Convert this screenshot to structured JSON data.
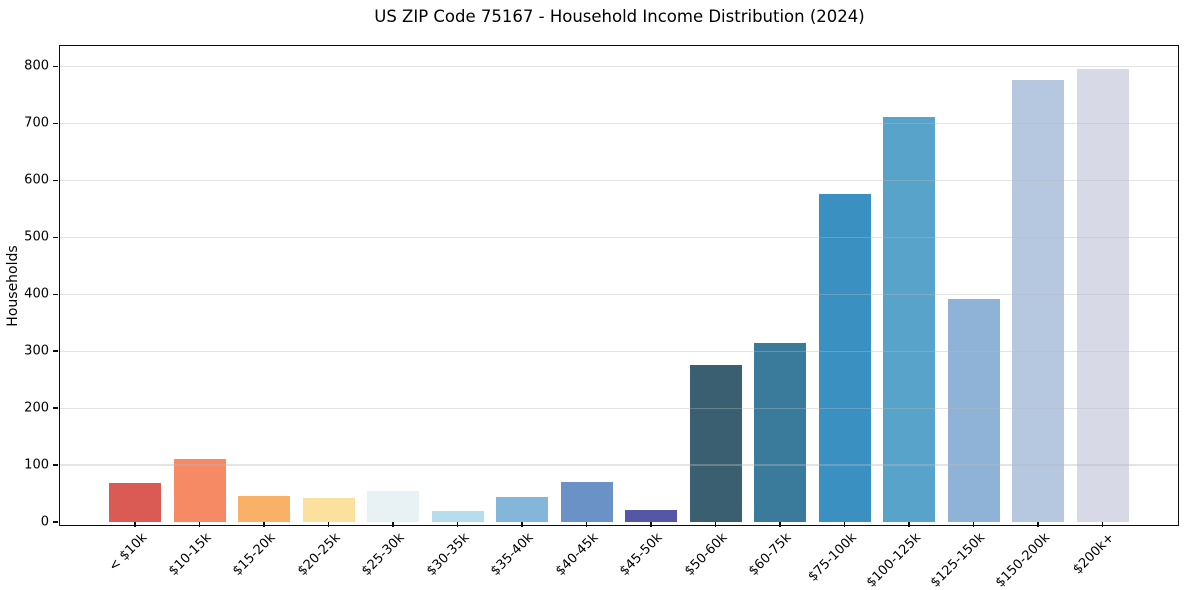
{
  "figure": {
    "title": "US ZIP Code 75167 - Household Income Distribution (2024)",
    "y_axis_label": "Households"
  },
  "chart_data": {
    "type": "bar",
    "title": "US ZIP Code 75167 - Household Income Distribution (2024)",
    "xlabel": "",
    "ylabel": "Households",
    "categories": [
      "< $10k",
      "$10-15k",
      "$15-20k",
      "$20-25k",
      "$25-30k",
      "$30-35k",
      "$35-40k",
      "$40-45k",
      "$45-50k",
      "$50-60k",
      "$60-75k",
      "$75-100k",
      "$100-125k",
      "$125-150k",
      "$150-200k",
      "$200k+"
    ],
    "values": [
      68,
      110,
      46,
      42,
      54,
      19,
      44,
      70,
      21,
      276,
      314,
      576,
      711,
      391,
      776,
      795
    ],
    "bar_colors": [
      "#d95b53",
      "#f58a65",
      "#f9b168",
      "#fce19e",
      "#e8f1f3",
      "#b5ddec",
      "#84b6d9",
      "#6b92c7",
      "#5557a6",
      "#3a5f70",
      "#3a7b9c",
      "#3990c1",
      "#58a3c9",
      "#8eb3d7",
      "#b6c7e0",
      "#d7d9e7"
    ],
    "ylim": [
      0,
      836
    ],
    "yticks": [
      0,
      100,
      200,
      300,
      400,
      500,
      600,
      700,
      800
    ],
    "grid": "horizontal",
    "grid_color": "rgba(185,185,192,0.38)",
    "x_tick_rotation_deg": 45,
    "legend": "none"
  }
}
